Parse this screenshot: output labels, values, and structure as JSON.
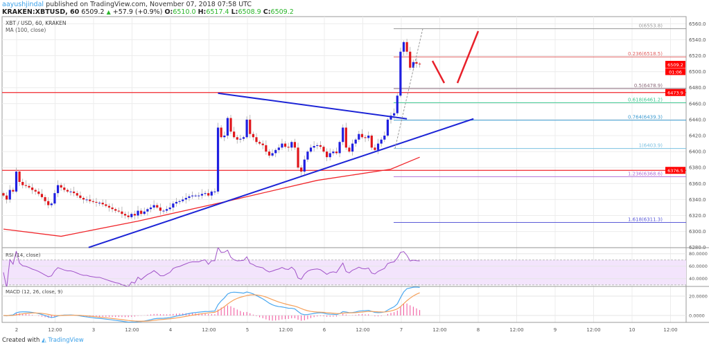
{
  "header": {
    "user": "aayushjindal",
    "published": "published on TradingView.com, November 07, 2018 07:58 UTC",
    "symbol": "KRAKEN:XBTUSD, 60",
    "last": "6509.2",
    "change": "+57.9 (+0.9%)",
    "o_label": "O:",
    "o": "6510.0",
    "h_label": "H:",
    "h": "6517.4",
    "l_label": "L:",
    "l": "6508.9",
    "c_label": "C:",
    "c": "6509.2"
  },
  "legend": {
    "title": "XBT / USD, 60, KRAKEN",
    "ma": "MA (100, close)",
    "rsi": "RSI (14, close)",
    "macd": "MACD (12, 26, close, 9)"
  },
  "colors": {
    "up": "#1f1fe0",
    "down": "#e0161b",
    "ma": "#f0262b",
    "trend": "#1c24d6",
    "hline": "#f0262b",
    "rsi": "#a052c8",
    "rsi_band": "#f3e4fc",
    "macd": "#4aa8f0",
    "signal": "#f5a05a",
    "hist": "#f0509a",
    "arrow": "#e8202a"
  },
  "chart_data": {
    "type": "candlestick",
    "interval": "60",
    "first_bar": "Nov 1 20:00",
    "closes": [
      6345,
      6340,
      6352,
      6350,
      6375,
      6362,
      6358,
      6357,
      6355,
      6352,
      6350,
      6347,
      6343,
      6338,
      6333,
      6335,
      6348,
      6358,
      6355,
      6352,
      6350,
      6350,
      6348,
      6345,
      6342,
      6340,
      6340,
      6338,
      6337,
      6336,
      6336,
      6334,
      6332,
      6330,
      6328,
      6326,
      6325,
      6322,
      6320,
      6318,
      6322,
      6320,
      6326,
      6322,
      6325,
      6328,
      6330,
      6333,
      6330,
      6326,
      6326,
      6328,
      6330,
      6335,
      6337,
      6338,
      6340,
      6342,
      6344,
      6345,
      6345,
      6345,
      6347,
      6348,
      6345,
      6350,
      6350,
      6430,
      6418,
      6420,
      6442,
      6425,
      6418,
      6415,
      6416,
      6418,
      6440,
      6422,
      6418,
      6412,
      6410,
      6408,
      6400,
      6395,
      6398,
      6402,
      6405,
      6410,
      6406,
      6405,
      6412,
      6405,
      6380,
      6375,
      6390,
      6400,
      6405,
      6407,
      6408,
      6406,
      6400,
      6393,
      6398,
      6400,
      6398,
      6412,
      6430,
      6405,
      6400,
      6410,
      6415,
      6422,
      6418,
      6417,
      6420,
      6405,
      6402,
      6410,
      6415,
      6420,
      6440,
      6445,
      6448,
      6470,
      6525,
      6537,
      6525,
      6505,
      6512,
      6510,
      6509.2
    ],
    "ma100": [
      [
        0,
        6303
      ],
      [
        18,
        6294
      ],
      [
        42,
        6313
      ],
      [
        70,
        6338
      ],
      [
        98,
        6364
      ],
      [
        121,
        6378
      ],
      [
        130,
        6393
      ]
    ],
    "price_ticks": [
      "6560.0",
      "6540.0",
      "6520.0",
      "6500.0",
      "6480.0",
      "6460.0",
      "6440.0",
      "6420.0",
      "6400.0",
      "6380.0",
      "6360.0",
      "6340.0",
      "6320.0",
      "6300.0",
      "6280.0"
    ],
    "time_ticks": [
      "2",
      "12:00",
      "3",
      "12:00",
      "4",
      "12:00",
      "5",
      "12:00",
      "6",
      "12:00",
      "7",
      "12:00",
      "8",
      "12:00",
      "9",
      "12:00",
      "10",
      "12:00"
    ],
    "horizontal_lines": [
      6473.9,
      6376.5
    ],
    "price_badges": [
      {
        "label": "6509.2",
        "value": 6509.2
      },
      {
        "label": "01:06",
        "value": 6500
      },
      {
        "label": "6473.9",
        "value": 6473.9
      },
      {
        "label": "6376.5",
        "value": 6376.5
      }
    ],
    "fib_levels": [
      {
        "label": "0(6553.8)",
        "value": 6553.8,
        "color": "#9a9a9a"
      },
      {
        "label": "0.236(6518.5)",
        "value": 6518.5,
        "color": "#e06060"
      },
      {
        "label": "0.5(6478.9)",
        "value": 6478.9,
        "color": "#8a6a7a"
      },
      {
        "label": "0.618(6461.2)",
        "value": 6461.2,
        "color": "#3cc890"
      },
      {
        "label": "0.764(6439.3)",
        "value": 6439.3,
        "color": "#3a9ad0"
      },
      {
        "label": "1(6403.9)",
        "value": 6403.9,
        "color": "#7ac0e0"
      },
      {
        "label": "1.236(6368.6)",
        "value": 6368.6,
        "color": "#b070d8"
      },
      {
        "label": "1.618(6311.3)",
        "value": 6311.3,
        "color": "#5a5ad8"
      }
    ],
    "trendlines": [
      {
        "from": [
          67,
          6473
        ],
        "to": [
          126,
          6441
        ]
      },
      {
        "from": [
          26.6,
          6280
        ],
        "to": [
          146.8,
          6441
        ]
      }
    ],
    "rsi_ticks": [
      "80.0000",
      "60.0000",
      "40.0000"
    ],
    "rsi_bands": [
      70,
      30
    ],
    "macd_ticks": [
      "20.0000",
      "0.0000"
    ]
  },
  "footer": {
    "created": "Created with",
    "brand": "TradingView"
  }
}
